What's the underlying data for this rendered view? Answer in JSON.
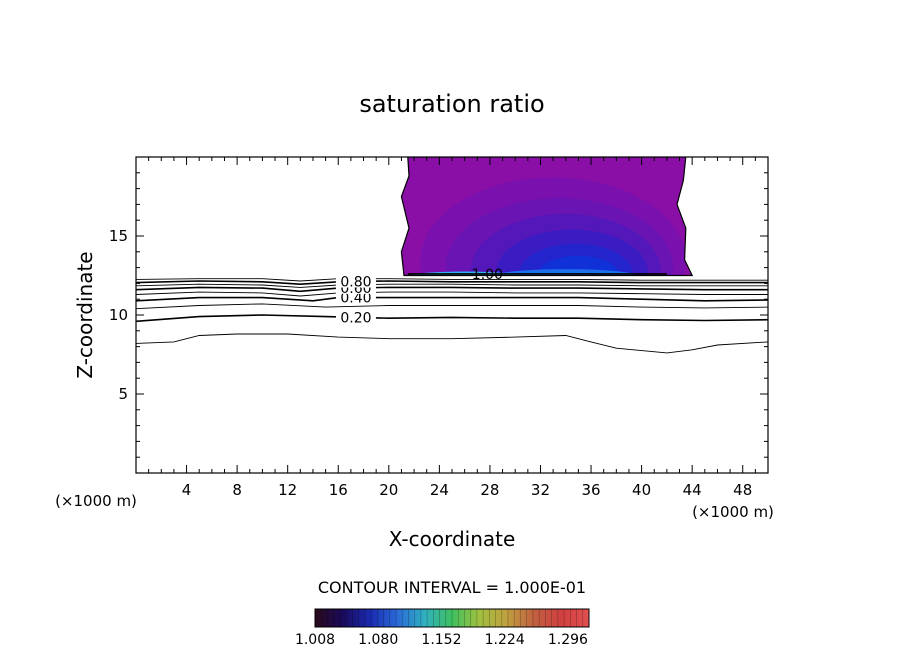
{
  "chart_data": {
    "type": "contour",
    "title": "saturation ratio",
    "xlabel": "X-coordinate",
    "ylabel": "Z-coordinate",
    "x_unit_label": "(×1000 m)",
    "z_unit_label": "(×1000 m)",
    "xlim": [
      0,
      50
    ],
    "ylim": [
      0,
      20
    ],
    "x_ticks": [
      4,
      8,
      12,
      16,
      20,
      24,
      28,
      32,
      36,
      40,
      44,
      48
    ],
    "y_ticks": [
      5,
      10,
      15
    ],
    "contour_interval_text": "CONTOUR INTERVAL = 1.000E-01",
    "contour_lines": [
      {
        "level": 0.1,
        "label": "",
        "points": [
          [
            0,
            8.2
          ],
          [
            3,
            8.3
          ],
          [
            5,
            8.7
          ],
          [
            8,
            8.8
          ],
          [
            12,
            8.8
          ],
          [
            16,
            8.6
          ],
          [
            20,
            8.5
          ],
          [
            25,
            8.5
          ],
          [
            30,
            8.6
          ],
          [
            34,
            8.7
          ],
          [
            36,
            8.3
          ],
          [
            38,
            7.9
          ],
          [
            42,
            7.6
          ],
          [
            44,
            7.8
          ],
          [
            46,
            8.1
          ],
          [
            50,
            8.3
          ]
        ]
      },
      {
        "level": 0.2,
        "label": "0.20",
        "points": [
          [
            0,
            9.6
          ],
          [
            5,
            9.9
          ],
          [
            10,
            10.0
          ],
          [
            15,
            9.9
          ],
          [
            20,
            9.8
          ],
          [
            25,
            9.85
          ],
          [
            30,
            9.8
          ],
          [
            35,
            9.8
          ],
          [
            40,
            9.7
          ],
          [
            45,
            9.65
          ],
          [
            50,
            9.7
          ]
        ]
      },
      {
        "level": 0.3,
        "label": "",
        "points": [
          [
            0,
            10.4
          ],
          [
            5,
            10.6
          ],
          [
            10,
            10.7
          ],
          [
            15,
            10.5
          ],
          [
            20,
            10.6
          ],
          [
            25,
            10.6
          ],
          [
            30,
            10.6
          ],
          [
            35,
            10.6
          ],
          [
            40,
            10.5
          ],
          [
            45,
            10.45
          ],
          [
            50,
            10.5
          ]
        ]
      },
      {
        "level": 0.4,
        "label": "0.40",
        "points": [
          [
            0,
            10.9
          ],
          [
            5,
            11.1
          ],
          [
            10,
            11.1
          ],
          [
            14,
            10.9
          ],
          [
            16,
            11.1
          ],
          [
            20,
            11.1
          ],
          [
            25,
            11.1
          ],
          [
            30,
            11.1
          ],
          [
            35,
            11.1
          ],
          [
            40,
            11.0
          ],
          [
            45,
            10.9
          ],
          [
            50,
            10.95
          ]
        ]
      },
      {
        "level": 0.5,
        "label": "",
        "points": [
          [
            0,
            11.3
          ],
          [
            5,
            11.45
          ],
          [
            10,
            11.4
          ],
          [
            13,
            11.2
          ],
          [
            16,
            11.4
          ],
          [
            20,
            11.45
          ],
          [
            25,
            11.45
          ],
          [
            30,
            11.4
          ],
          [
            35,
            11.4
          ],
          [
            40,
            11.35
          ],
          [
            45,
            11.3
          ],
          [
            50,
            11.3
          ]
        ]
      },
      {
        "level": 0.6,
        "label": "0.60",
        "points": [
          [
            0,
            11.6
          ],
          [
            5,
            11.75
          ],
          [
            10,
            11.7
          ],
          [
            13,
            11.5
          ],
          [
            16,
            11.7
          ],
          [
            20,
            11.75
          ],
          [
            25,
            11.75
          ],
          [
            30,
            11.7
          ],
          [
            35,
            11.7
          ],
          [
            40,
            11.65
          ],
          [
            45,
            11.6
          ],
          [
            50,
            11.6
          ]
        ]
      },
      {
        "level": 0.7,
        "label": "",
        "points": [
          [
            0,
            11.85
          ],
          [
            5,
            11.95
          ],
          [
            10,
            11.9
          ],
          [
            13,
            11.75
          ],
          [
            16,
            11.9
          ],
          [
            20,
            11.95
          ],
          [
            25,
            11.95
          ],
          [
            30,
            11.9
          ],
          [
            35,
            11.9
          ],
          [
            40,
            11.85
          ],
          [
            45,
            11.85
          ],
          [
            50,
            11.85
          ]
        ]
      },
      {
        "level": 0.8,
        "label": "0.80",
        "points": [
          [
            0,
            12.05
          ],
          [
            5,
            12.15
          ],
          [
            10,
            12.1
          ],
          [
            13,
            11.95
          ],
          [
            16,
            12.1
          ],
          [
            20,
            12.15
          ],
          [
            25,
            12.1
          ],
          [
            30,
            12.1
          ],
          [
            35,
            12.1
          ],
          [
            40,
            12.05
          ],
          [
            45,
            12.05
          ],
          [
            50,
            12.05
          ]
        ]
      },
      {
        "level": 0.9,
        "label": "",
        "points": [
          [
            0,
            12.25
          ],
          [
            5,
            12.3
          ],
          [
            10,
            12.3
          ],
          [
            13,
            12.15
          ],
          [
            16,
            12.3
          ],
          [
            20,
            12.3
          ],
          [
            25,
            12.25
          ],
          [
            30,
            12.25
          ],
          [
            35,
            12.25
          ],
          [
            40,
            12.2
          ],
          [
            45,
            12.2
          ],
          [
            50,
            12.2
          ]
        ]
      },
      {
        "level": 1.0,
        "label": "1.00",
        "points": [
          [
            21.5,
            12.6
          ],
          [
            26,
            12.6
          ],
          [
            30,
            12.6
          ],
          [
            34,
            12.6
          ],
          [
            38,
            12.6
          ],
          [
            42,
            12.6
          ]
        ]
      }
    ],
    "shaded_region": {
      "description": "supersaturated layer (ratio > 1.008)",
      "outline": [
        [
          21.2,
          12.5
        ],
        [
          21.0,
          14.0
        ],
        [
          21.6,
          15.5
        ],
        [
          21.0,
          17.5
        ],
        [
          21.6,
          18.8
        ],
        [
          21.5,
          20.0
        ],
        [
          43.5,
          20.0
        ],
        [
          43.3,
          18.5
        ],
        [
          42.8,
          17.0
        ],
        [
          43.5,
          15.5
        ],
        [
          43.4,
          13.5
        ],
        [
          44.0,
          12.5
        ]
      ],
      "fill_levels": [
        {
          "value": 1.008,
          "color": "#8a0fa6",
          "cx": 32.5,
          "cz": 14.4,
          "rx": 11.5,
          "rz": 6.5
        },
        {
          "value": 1.03,
          "color": "#7a10ad",
          "cx": 33.0,
          "cz": 13.4,
          "rx": 10.5,
          "rz": 5.3
        },
        {
          "value": 1.05,
          "color": "#6914b3",
          "cx": 33.5,
          "cz": 13.0,
          "rx": 9.0,
          "rz": 4.4
        },
        {
          "value": 1.07,
          "color": "#5317ba",
          "cx": 34.0,
          "cz": 12.8,
          "rx": 7.5,
          "rz": 3.6
        },
        {
          "value": 1.09,
          "color": "#3a1cc2",
          "cx": 34.5,
          "cz": 12.7,
          "rx": 6.0,
          "rz": 2.7
        },
        {
          "value": 1.11,
          "color": "#2424cc",
          "cx": 34.8,
          "cz": 12.6,
          "rx": 4.5,
          "rz": 1.9
        },
        {
          "value": 1.13,
          "color": "#1030d8",
          "cx": 35.0,
          "cz": 12.55,
          "rx": 3.2,
          "rz": 1.2
        },
        {
          "value": 1.15,
          "color": "#1f6fe8",
          "cx": 34.0,
          "cz": 12.5,
          "rx": 5.5,
          "rz": 0.4
        },
        {
          "value": 1.17,
          "color": "#2fb3f0",
          "cx": 26.0,
          "cz": 12.5,
          "rx": 4.2,
          "rz": 0.25
        }
      ]
    },
    "colorbar": {
      "min": 1.008,
      "max": 1.32,
      "tick_labels": [
        "1.008",
        "1.080",
        "1.152",
        "1.224",
        "1.296"
      ],
      "colors": [
        "#2a0a1a",
        "#1a0a5a",
        "#1a2ab0",
        "#2a6ad8",
        "#30b0c0",
        "#40c060",
        "#a0c040",
        "#c0a040",
        "#c06040",
        "#d04040",
        "#e05050"
      ]
    }
  }
}
